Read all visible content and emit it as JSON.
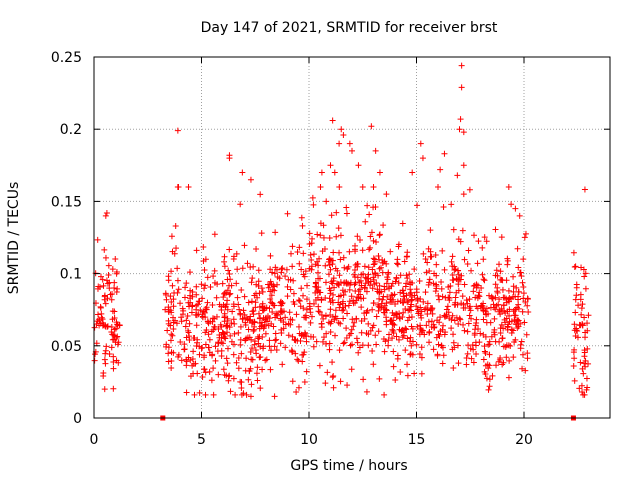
{
  "chart_data": {
    "type": "scatter",
    "title": "Day 147 of 2021, SRMTID for receiver brst",
    "xlabel": "GPS time / hours",
    "ylabel": "SRMTID / TECUs",
    "xlim": [
      0,
      24
    ],
    "ylim": [
      0,
      0.25
    ],
    "xticks": [
      0,
      5,
      10,
      15,
      20
    ],
    "yticks": [
      0,
      0.05,
      0.1,
      0.15,
      0.2,
      0.25
    ],
    "xtick_labels": [
      "0",
      "5",
      "10",
      "15",
      "20"
    ],
    "ytick_labels": [
      "0",
      "0.05",
      "0.1",
      "0.15",
      "0.2",
      "0.25"
    ],
    "grid": true,
    "marker": "+",
    "color": "#ff0000",
    "zero_markers_x": [
      3.2,
      22.3
    ],
    "segments": [
      {
        "x_start": 0.0,
        "x_end": 1.2,
        "mean": 0.068,
        "spread": 0.02,
        "count": 95
      },
      {
        "x_start": 3.3,
        "x_end": 4.2,
        "mean": 0.07,
        "spread": 0.022,
        "count": 60
      },
      {
        "x_start": 4.2,
        "x_end": 8.0,
        "mean": 0.062,
        "spread": 0.022,
        "count": 340
      },
      {
        "x_start": 8.0,
        "x_end": 10.0,
        "mean": 0.075,
        "spread": 0.024,
        "count": 150
      },
      {
        "x_start": 10.0,
        "x_end": 13.5,
        "mean": 0.085,
        "spread": 0.025,
        "count": 320
      },
      {
        "x_start": 13.5,
        "x_end": 17.0,
        "mean": 0.075,
        "spread": 0.022,
        "count": 300
      },
      {
        "x_start": 17.0,
        "x_end": 20.2,
        "mean": 0.07,
        "spread": 0.022,
        "count": 260
      },
      {
        "x_start": 22.3,
        "x_end": 23.0,
        "mean": 0.055,
        "spread": 0.02,
        "count": 60
      }
    ],
    "highlight_points": [
      {
        "x": 3.9,
        "y": 0.199
      },
      {
        "x": 3.9,
        "y": 0.16
      },
      {
        "x": 3.8,
        "y": 0.133
      },
      {
        "x": 0.6,
        "y": 0.142
      },
      {
        "x": 0.55,
        "y": 0.14
      },
      {
        "x": 6.3,
        "y": 0.182
      },
      {
        "x": 6.3,
        "y": 0.18
      },
      {
        "x": 6.9,
        "y": 0.17
      },
      {
        "x": 7.3,
        "y": 0.165
      },
      {
        "x": 6.8,
        "y": 0.148
      },
      {
        "x": 7.8,
        "y": 0.128
      },
      {
        "x": 11.1,
        "y": 0.206
      },
      {
        "x": 11.5,
        "y": 0.2
      },
      {
        "x": 11.6,
        "y": 0.196
      },
      {
        "x": 11.4,
        "y": 0.19
      },
      {
        "x": 11.9,
        "y": 0.19
      },
      {
        "x": 12.0,
        "y": 0.185
      },
      {
        "x": 11.0,
        "y": 0.175
      },
      {
        "x": 11.2,
        "y": 0.17
      },
      {
        "x": 12.3,
        "y": 0.175
      },
      {
        "x": 12.9,
        "y": 0.202
      },
      {
        "x": 13.1,
        "y": 0.185
      },
      {
        "x": 13.3,
        "y": 0.17
      },
      {
        "x": 13.0,
        "y": 0.16
      },
      {
        "x": 13.6,
        "y": 0.155
      },
      {
        "x": 12.5,
        "y": 0.16
      },
      {
        "x": 10.6,
        "y": 0.17
      },
      {
        "x": 10.8,
        "y": 0.15
      },
      {
        "x": 15.2,
        "y": 0.19
      },
      {
        "x": 15.3,
        "y": 0.18
      },
      {
        "x": 14.8,
        "y": 0.17
      },
      {
        "x": 16.1,
        "y": 0.172
      },
      {
        "x": 16.3,
        "y": 0.183
      },
      {
        "x": 16.0,
        "y": 0.16
      },
      {
        "x": 17.1,
        "y": 0.244
      },
      {
        "x": 17.1,
        "y": 0.229
      },
      {
        "x": 17.05,
        "y": 0.207
      },
      {
        "x": 17.0,
        "y": 0.2
      },
      {
        "x": 17.2,
        "y": 0.198
      },
      {
        "x": 17.2,
        "y": 0.175
      },
      {
        "x": 16.9,
        "y": 0.168
      },
      {
        "x": 17.2,
        "y": 0.155
      },
      {
        "x": 19.4,
        "y": 0.148
      },
      {
        "x": 19.6,
        "y": 0.145
      },
      {
        "x": 19.8,
        "y": 0.14
      },
      {
        "x": 22.8,
        "y": 0.098
      },
      {
        "x": 22.4,
        "y": 0.105
      },
      {
        "x": 22.7,
        "y": 0.018
      },
      {
        "x": 0.5,
        "y": 0.02
      },
      {
        "x": 6.8,
        "y": 0.025
      },
      {
        "x": 7.3,
        "y": 0.015
      },
      {
        "x": 8.4,
        "y": 0.015
      },
      {
        "x": 9.4,
        "y": 0.018
      },
      {
        "x": 18.4,
        "y": 0.022
      },
      {
        "x": 19.3,
        "y": 0.028
      }
    ]
  }
}
